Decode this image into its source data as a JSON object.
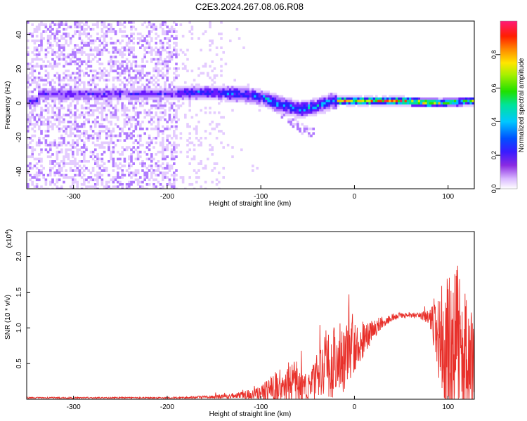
{
  "title": "C2E3.2024.267.08.06.R08",
  "chart_data": [
    {
      "type": "heatmap",
      "xlabel": "Height of straight line (km)",
      "ylabel": "Frequency (Hz)",
      "xlim": [
        -350,
        128
      ],
      "ylim": [
        -50,
        48
      ],
      "x_ticks": [
        "-300",
        "-200",
        "-100",
        "0",
        "100"
      ],
      "y_ticks": [
        "-40",
        "-20",
        "0",
        "20",
        "40"
      ],
      "colorbar": {
        "label": "Normalized spectral amplitude",
        "range": [
          0,
          1
        ],
        "ticks": [
          "0.0",
          "0.2",
          "0.4",
          "0.6",
          "0.8"
        ],
        "colormap": "rainbow (white-violet-blue-cyan-green-yellow-red-magenta)"
      },
      "description_of_signal": {
        "ridge": [
          [
            -340,
            6
          ],
          [
            -300,
            6
          ],
          [
            -250,
            6
          ],
          [
            -200,
            6
          ],
          [
            -160,
            7
          ],
          [
            -120,
            6
          ],
          [
            -100,
            4
          ],
          [
            -80,
            0
          ],
          [
            -60,
            -3
          ],
          [
            -40,
            -1
          ],
          [
            -25,
            2
          ],
          [
            0,
            2
          ],
          [
            25,
            2
          ],
          [
            50,
            2
          ],
          [
            75,
            1
          ],
          [
            100,
            1
          ],
          [
            128,
            2
          ]
        ],
        "strong_band_x": [
          -20,
          80
        ],
        "noise_region_x": [
          -350,
          -140
        ]
      }
    },
    {
      "type": "line",
      "xlabel": "Height of straight line (km)",
      "ylabel": "SNR (10 * v/v)",
      "y_multiplier": "(x10",
      "y_multiplier_exp": "4",
      "y_multiplier_close": ")",
      "xlim": [
        -350,
        128
      ],
      "ylim": [
        0,
        2.35
      ],
      "x_ticks": [
        "-300",
        "-200",
        "-100",
        "0",
        "100"
      ],
      "y_ticks": [
        "0.5",
        "1.0",
        "1.5",
        "2.0"
      ],
      "color": "#e8302a",
      "envelope": {
        "x": [
          -350,
          -200,
          -160,
          -140,
          -120,
          -100,
          -90,
          -80,
          -70,
          -60,
          -50,
          -40,
          -30,
          -20,
          -10,
          0,
          10,
          20,
          30,
          40,
          50,
          60,
          70,
          80,
          90,
          100,
          110,
          120,
          128
        ],
        "base": [
          0.02,
          0.02,
          0.03,
          0.04,
          0.06,
          0.08,
          0.14,
          0.18,
          0.22,
          0.18,
          0.15,
          0.3,
          0.45,
          0.55,
          0.62,
          0.72,
          0.85,
          0.98,
          1.08,
          1.15,
          1.18,
          1.18,
          1.17,
          1.15,
          0.9,
          0.7,
          0.7,
          0.6,
          0.5
        ],
        "amp": [
          0.01,
          0.01,
          0.02,
          0.03,
          0.05,
          0.1,
          0.18,
          0.25,
          0.3,
          0.25,
          0.2,
          0.35,
          0.45,
          0.55,
          0.5,
          0.35,
          0.25,
          0.15,
          0.08,
          0.05,
          0.04,
          0.04,
          0.05,
          0.1,
          0.7,
          1.0,
          1.2,
          0.8,
          0.6
        ]
      }
    }
  ]
}
